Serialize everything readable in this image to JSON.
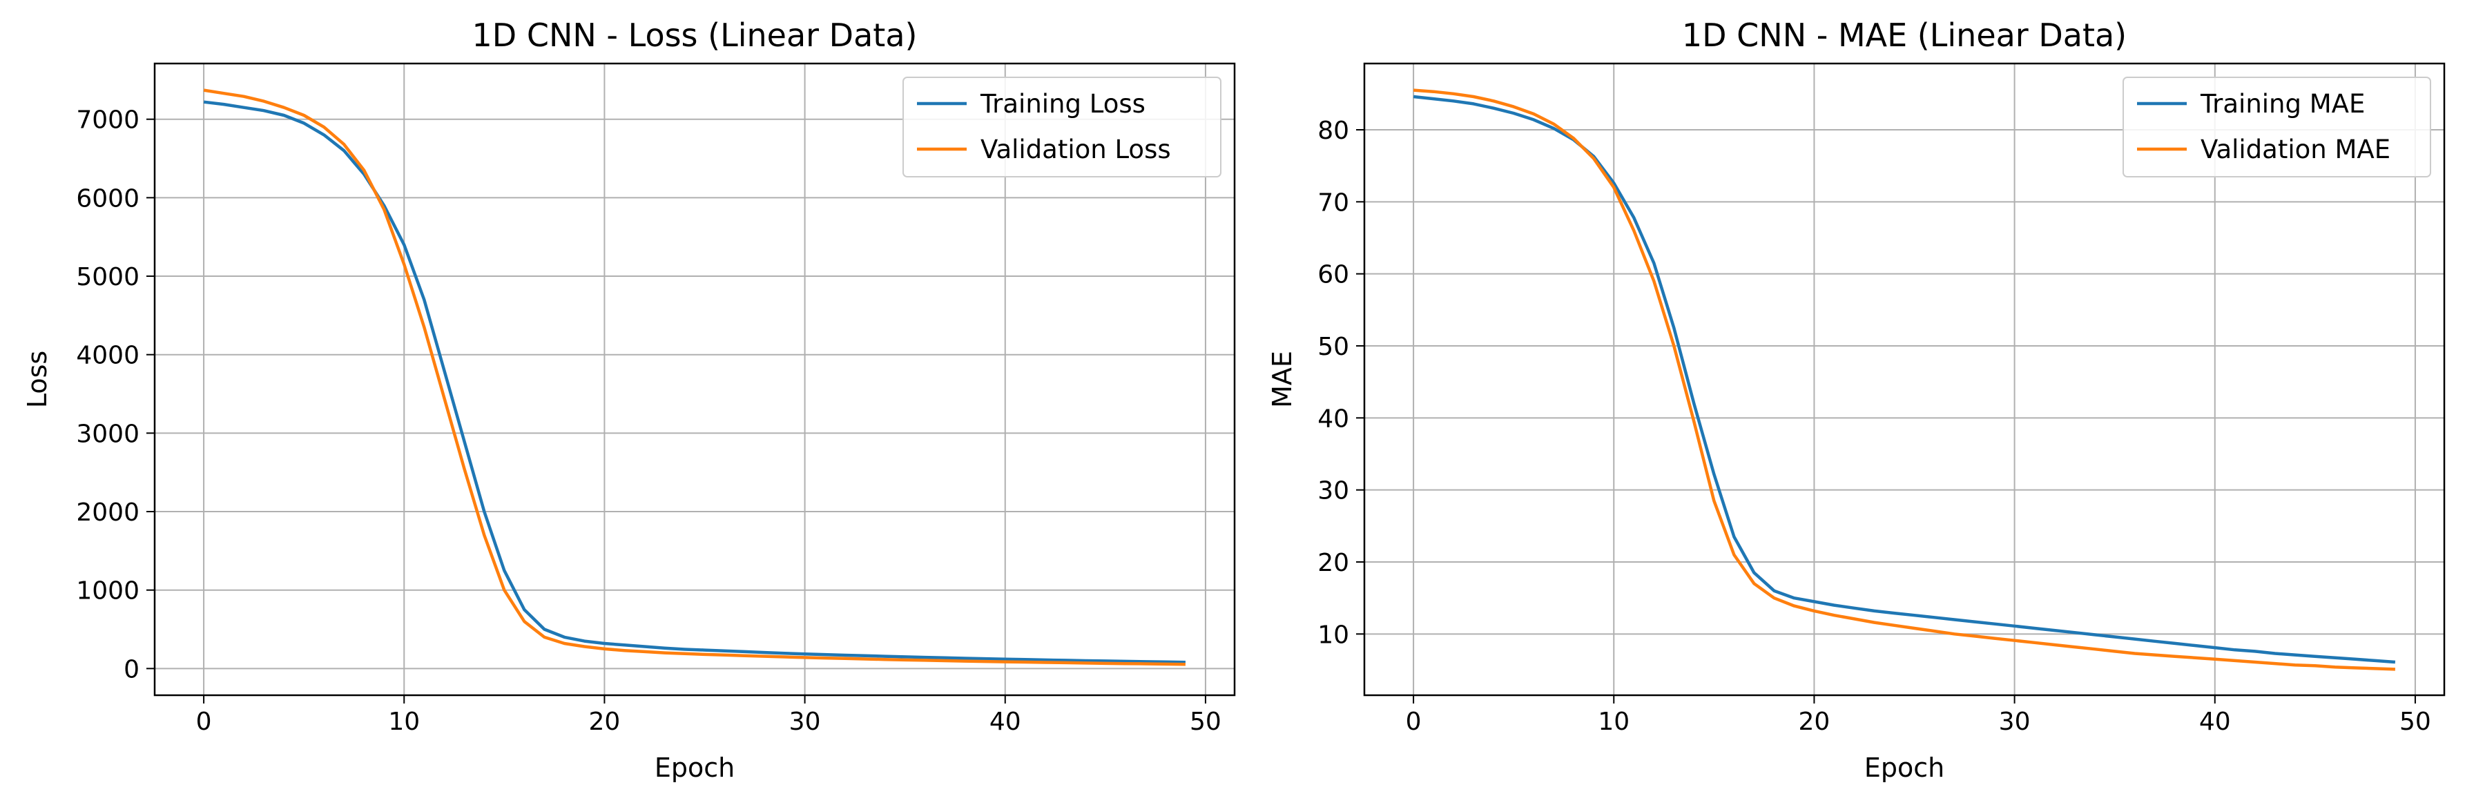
{
  "chart_data": [
    {
      "type": "line",
      "title": "1D CNN - Loss (Linear Data)",
      "xlabel": "Epoch",
      "ylabel": "Loss",
      "xlim": [
        -2.45,
        51.45
      ],
      "ylim": [
        -340,
        7710
      ],
      "xticks": [
        0,
        10,
        20,
        30,
        40,
        50
      ],
      "yticks": [
        0,
        1000,
        2000,
        3000,
        4000,
        5000,
        6000,
        7000
      ],
      "grid": true,
      "legend_position": "top-right",
      "x": [
        0,
        1,
        2,
        3,
        4,
        5,
        6,
        7,
        8,
        9,
        10,
        11,
        12,
        13,
        14,
        15,
        16,
        17,
        18,
        19,
        20,
        21,
        22,
        23,
        24,
        25,
        26,
        27,
        28,
        29,
        30,
        31,
        32,
        33,
        34,
        35,
        36,
        37,
        38,
        39,
        40,
        41,
        42,
        43,
        44,
        45,
        46,
        47,
        48,
        49
      ],
      "series": [
        {
          "name": "Training Loss",
          "color": "#1f77b4",
          "values": [
            7220,
            7190,
            7150,
            7110,
            7050,
            6950,
            6800,
            6600,
            6300,
            5900,
            5400,
            4700,
            3800,
            2900,
            2000,
            1250,
            750,
            500,
            400,
            350,
            320,
            300,
            280,
            260,
            245,
            235,
            225,
            215,
            205,
            195,
            185,
            178,
            170,
            163,
            156,
            149,
            143,
            137,
            131,
            125,
            120,
            115,
            110,
            105,
            100,
            96,
            92,
            88,
            84,
            80
          ]
        },
        {
          "name": "Validation Loss",
          "color": "#ff7f0e",
          "values": [
            7370,
            7330,
            7290,
            7230,
            7150,
            7050,
            6900,
            6680,
            6350,
            5850,
            5150,
            4350,
            3450,
            2550,
            1700,
            1000,
            600,
            400,
            320,
            280,
            250,
            230,
            215,
            200,
            190,
            180,
            172,
            164,
            156,
            148,
            140,
            134,
            128,
            122,
            116,
            110,
            105,
            100,
            95,
            90,
            86,
            82,
            78,
            74,
            70,
            66,
            63,
            60,
            57,
            54
          ]
        }
      ]
    },
    {
      "type": "line",
      "title": "1D CNN - MAE (Linear Data)",
      "xlabel": "Epoch",
      "ylabel": "MAE",
      "xlim": [
        -2.45,
        51.45
      ],
      "ylim": [
        1.5,
        89.2
      ],
      "xticks": [
        0,
        10,
        20,
        30,
        40,
        50
      ],
      "yticks": [
        10,
        20,
        30,
        40,
        50,
        60,
        70,
        80
      ],
      "grid": true,
      "legend_position": "top-right",
      "x": [
        0,
        1,
        2,
        3,
        4,
        5,
        6,
        7,
        8,
        9,
        10,
        11,
        12,
        13,
        14,
        15,
        16,
        17,
        18,
        19,
        20,
        21,
        22,
        23,
        24,
        25,
        26,
        27,
        28,
        29,
        30,
        31,
        32,
        33,
        34,
        35,
        36,
        37,
        38,
        39,
        40,
        41,
        42,
        43,
        44,
        45,
        46,
        47,
        48,
        49
      ],
      "series": [
        {
          "name": "Training MAE",
          "color": "#1f77b4",
          "values": [
            84.6,
            84.3,
            84.0,
            83.6,
            83.0,
            82.3,
            81.4,
            80.2,
            78.6,
            76.3,
            72.6,
            67.8,
            61.5,
            52.5,
            42.0,
            32.2,
            23.5,
            18.5,
            16.0,
            15.0,
            14.5,
            14.0,
            13.6,
            13.2,
            12.9,
            12.6,
            12.3,
            12.0,
            11.7,
            11.4,
            11.1,
            10.8,
            10.5,
            10.2,
            9.9,
            9.6,
            9.3,
            9.0,
            8.7,
            8.4,
            8.1,
            7.8,
            7.6,
            7.3,
            7.1,
            6.9,
            6.7,
            6.5,
            6.3,
            6.1
          ]
        },
        {
          "name": "Validation MAE",
          "color": "#ff7f0e",
          "values": [
            85.5,
            85.3,
            85.0,
            84.6,
            84.0,
            83.2,
            82.2,
            80.8,
            78.8,
            76.0,
            72.0,
            66.0,
            59.0,
            50.0,
            39.5,
            28.5,
            21.0,
            17.0,
            15.0,
            13.9,
            13.2,
            12.6,
            12.1,
            11.6,
            11.2,
            10.8,
            10.4,
            10.0,
            9.7,
            9.4,
            9.1,
            8.8,
            8.5,
            8.2,
            7.9,
            7.6,
            7.3,
            7.1,
            6.9,
            6.7,
            6.5,
            6.3,
            6.1,
            5.9,
            5.7,
            5.6,
            5.4,
            5.3,
            5.2,
            5.1
          ]
        }
      ]
    }
  ]
}
